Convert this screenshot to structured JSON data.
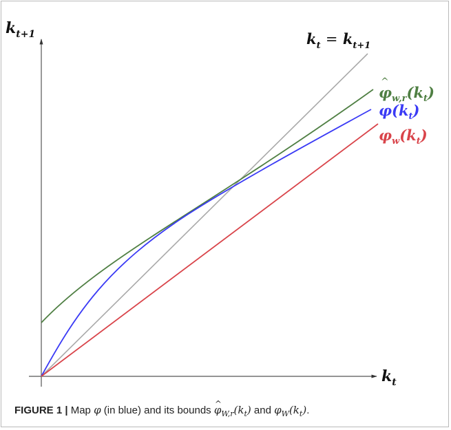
{
  "axes": {
    "y_label": {
      "base": "k",
      "sub": "t+1"
    },
    "x_label": {
      "base": "k",
      "sub": "t"
    }
  },
  "curves": {
    "diagonal": {
      "label_left": "k",
      "label_left_sub": "t",
      "eq": "=",
      "label_right": "k",
      "label_right_sub": "t+1",
      "color": "#a9a9a9"
    },
    "upper_bound": {
      "label_base": "φ",
      "label_sub": "w,r",
      "label_arg": "(k",
      "label_arg_sub": "t",
      "label_close": ")",
      "color": "#4f7f43"
    },
    "phi": {
      "label_base": "φ",
      "label_arg": "(k",
      "label_arg_sub": "t",
      "label_close": ")",
      "color": "#3a3af5"
    },
    "lower_bound": {
      "label_base": "φ",
      "label_sub": "w",
      "label_arg": "(k",
      "label_arg_sub": "t",
      "label_close": ")",
      "color": "#d9444a"
    }
  },
  "caption": {
    "fig_label": "FIGURE 1 |",
    "text_1": " Map ",
    "phi": "φ",
    "text_2": " (in blue) and its bounds ",
    "phi_hat_base": "φ",
    "phi_hat_sub": "W,r",
    "arg_1": "(k",
    "arg_1_sub": "t",
    "close_1": ")",
    "text_and": " and ",
    "phi_w_base": "φ",
    "phi_w_sub": "W",
    "arg_2": "(k",
    "arg_2_sub": "t",
    "close_2": ")",
    "end": "."
  }
}
